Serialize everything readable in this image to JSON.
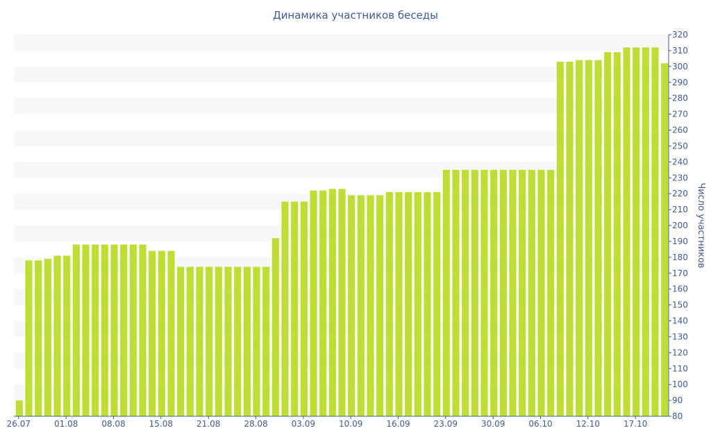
{
  "chart_data": {
    "type": "bar",
    "title": "Динамика участников беседы",
    "xlabel": "",
    "ylabel": "Число участников",
    "ylim": [
      80,
      320
    ],
    "y_ticks": [
      80,
      90,
      100,
      110,
      120,
      130,
      140,
      150,
      160,
      170,
      180,
      190,
      200,
      210,
      220,
      230,
      240,
      250,
      260,
      270,
      280,
      290,
      300,
      310,
      320
    ],
    "y_axis_position": "right",
    "grid": "alternating horizontal bands",
    "bar_color": "#bedf31",
    "band_color": "#f7f7f7",
    "text_color": "#3d5a9c",
    "x_tick_labels": [
      {
        "label": "26.07",
        "index": 0
      },
      {
        "label": "01.08",
        "index": 5
      },
      {
        "label": "08.08",
        "index": 10
      },
      {
        "label": "15.08",
        "index": 15
      },
      {
        "label": "21.08",
        "index": 20
      },
      {
        "label": "28.08",
        "index": 25
      },
      {
        "label": "03.09",
        "index": 30
      },
      {
        "label": "10.09",
        "index": 35
      },
      {
        "label": "16.09",
        "index": 40
      },
      {
        "label": "23.09",
        "index": 45
      },
      {
        "label": "30.09",
        "index": 50
      },
      {
        "label": "06.10",
        "index": 55
      },
      {
        "label": "12.10",
        "index": 60
      },
      {
        "label": "17.10",
        "index": 65
      }
    ],
    "values": [
      90,
      178,
      178,
      179,
      181,
      181,
      188,
      188,
      188,
      188,
      188,
      188,
      188,
      188,
      184,
      184,
      184,
      174,
      174,
      174,
      174,
      174,
      174,
      174,
      174,
      174,
      174,
      192,
      215,
      215,
      215,
      222,
      222,
      223,
      223,
      219,
      219,
      219,
      219,
      221,
      221,
      221,
      221,
      221,
      221,
      235,
      235,
      235,
      235,
      235,
      235,
      235,
      235,
      235,
      235,
      235,
      235,
      303,
      303,
      304,
      304,
      304,
      309,
      309,
      312,
      312,
      312,
      312,
      302
    ]
  }
}
